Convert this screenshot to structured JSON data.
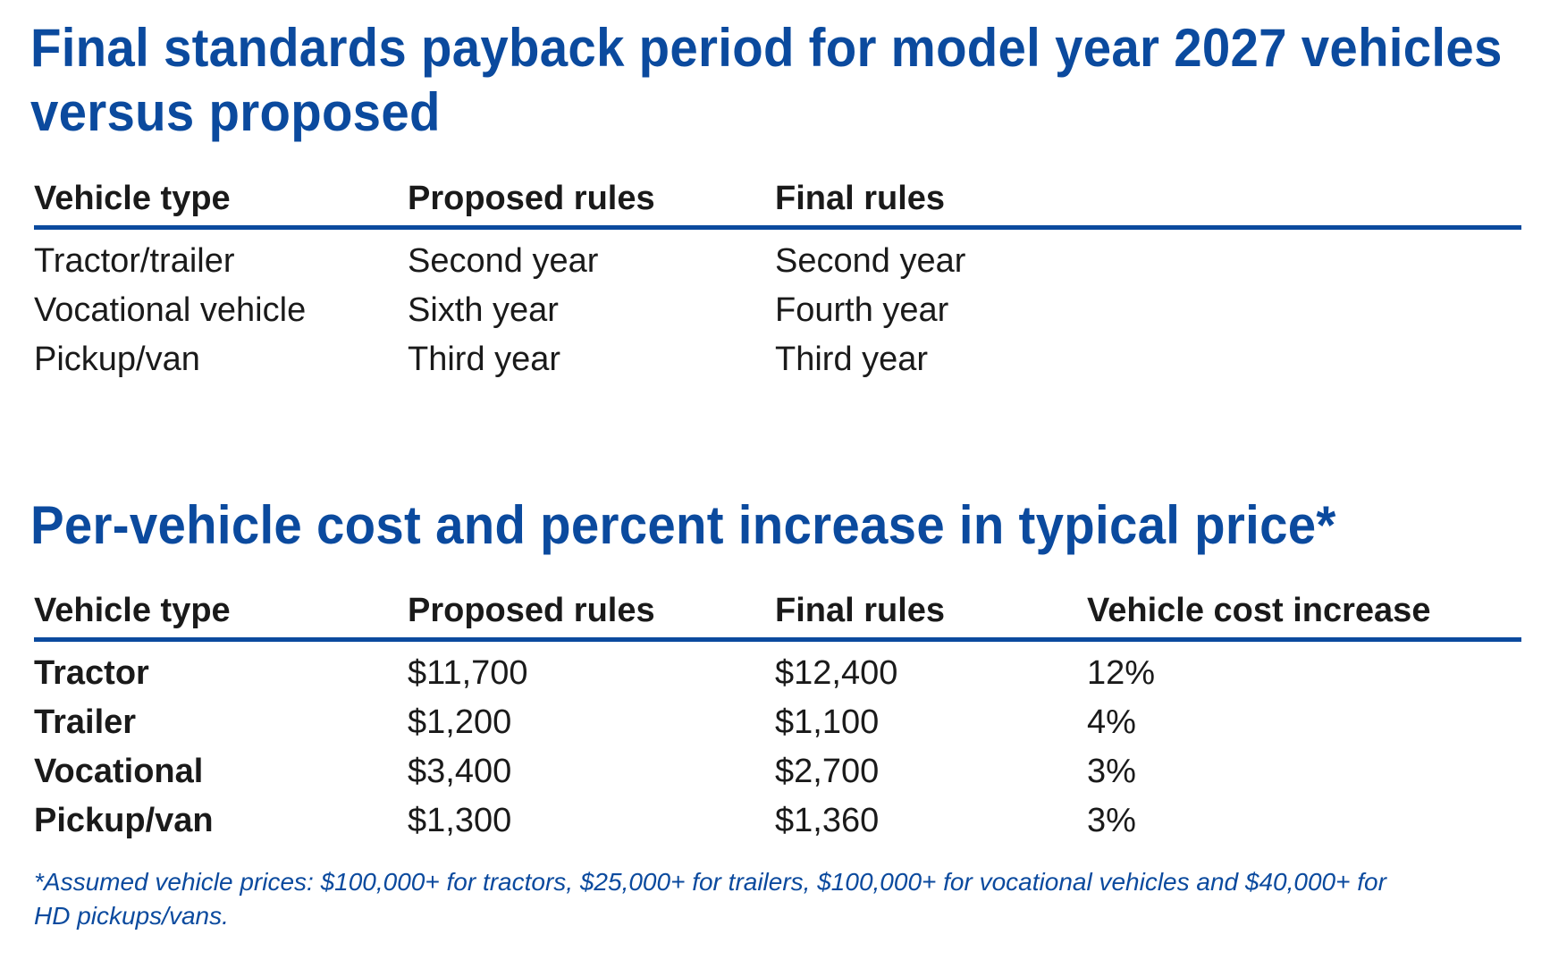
{
  "payback": {
    "title": "Final standards payback period for model year 2027 vehicles versus proposed",
    "headers": [
      "Vehicle type",
      "Proposed rules",
      "Final rules"
    ],
    "rows": [
      {
        "vehicle": "Tractor/trailer",
        "proposed": "Second year",
        "final": "Second year"
      },
      {
        "vehicle": "Vocational vehicle",
        "proposed": "Sixth year",
        "final": "Fourth year"
      },
      {
        "vehicle": "Pickup/van",
        "proposed": "Third year",
        "final": "Third year"
      }
    ]
  },
  "cost": {
    "title": "Per-vehicle cost and percent increase in typical price*",
    "headers": [
      "Vehicle type",
      "Proposed rules",
      "Final rules",
      "Vehicle cost increase"
    ],
    "rows": [
      {
        "vehicle": "Tractor",
        "proposed": "$11,700",
        "final": "$12,400",
        "increase": "12%"
      },
      {
        "vehicle": "Trailer",
        "proposed": "$1,200",
        "final": "$1,100",
        "increase": "4%"
      },
      {
        "vehicle": "Vocational",
        "proposed": "$3,400",
        "final": "$2,700",
        "increase": "3%"
      },
      {
        "vehicle": "Pickup/van",
        "proposed": "$1,300",
        "final": "$1,360",
        "increase": "3%"
      }
    ],
    "footnote_line1": "*Assumed vehicle prices: $100,000+ for tractors, $25,000+ for trailers, $100,000+ for vocational vehicles and $40,000+ for",
    "footnote_line2": "HD pickups/vans."
  },
  "colors": {
    "heading_blue": "#0b4a9e",
    "rule_blue": "#0b4a9e",
    "text": "#1a1a1a"
  }
}
